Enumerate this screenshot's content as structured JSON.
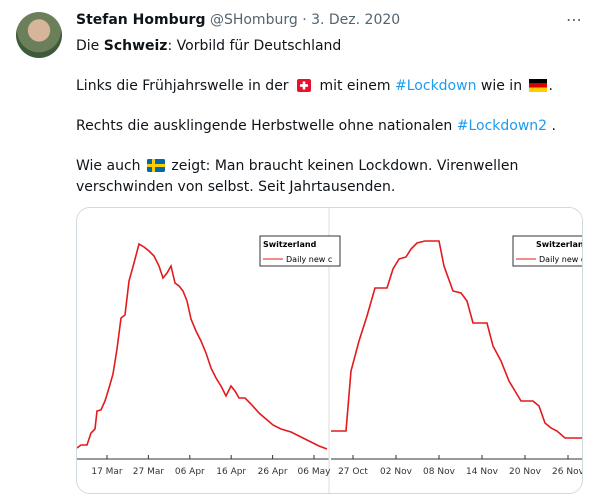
{
  "author": {
    "name": "Stefan Homburg",
    "handle": "@SHomburg",
    "date": "3. Dez. 2020"
  },
  "tweet": {
    "line1": [
      "Die ",
      "Schweiz",
      ": Vorbild für Deutschland"
    ],
    "line2": [
      "Links die Frühjahrswelle in der ",
      " mit einem ",
      "#Lockdown",
      " wie in ",
      "."
    ],
    "line3": [
      "Rechts die ausklingende Herbstwelle ohne nationalen ",
      "#Lockdown2",
      " ."
    ],
    "line4": [
      "Wie auch ",
      " zeigt: Man braucht keinen Lockdown. Virenwellen verschwinden von selbst. Seit Jahrtausenden."
    ]
  },
  "charts": [
    {
      "legend_title": "Switzerland",
      "legend_label": "Daily new c",
      "xticks": [
        "17 Mar",
        "27 Mar",
        "06 Apr",
        "16 Apr",
        "26 Apr",
        "06 May"
      ]
    },
    {
      "legend_title": "Switzerland",
      "legend_label": "Daily new c",
      "xticks": [
        "27 Oct",
        "02 Nov",
        "08 Nov",
        "14 Nov",
        "20 Nov",
        "26 Nov"
      ]
    }
  ]
}
